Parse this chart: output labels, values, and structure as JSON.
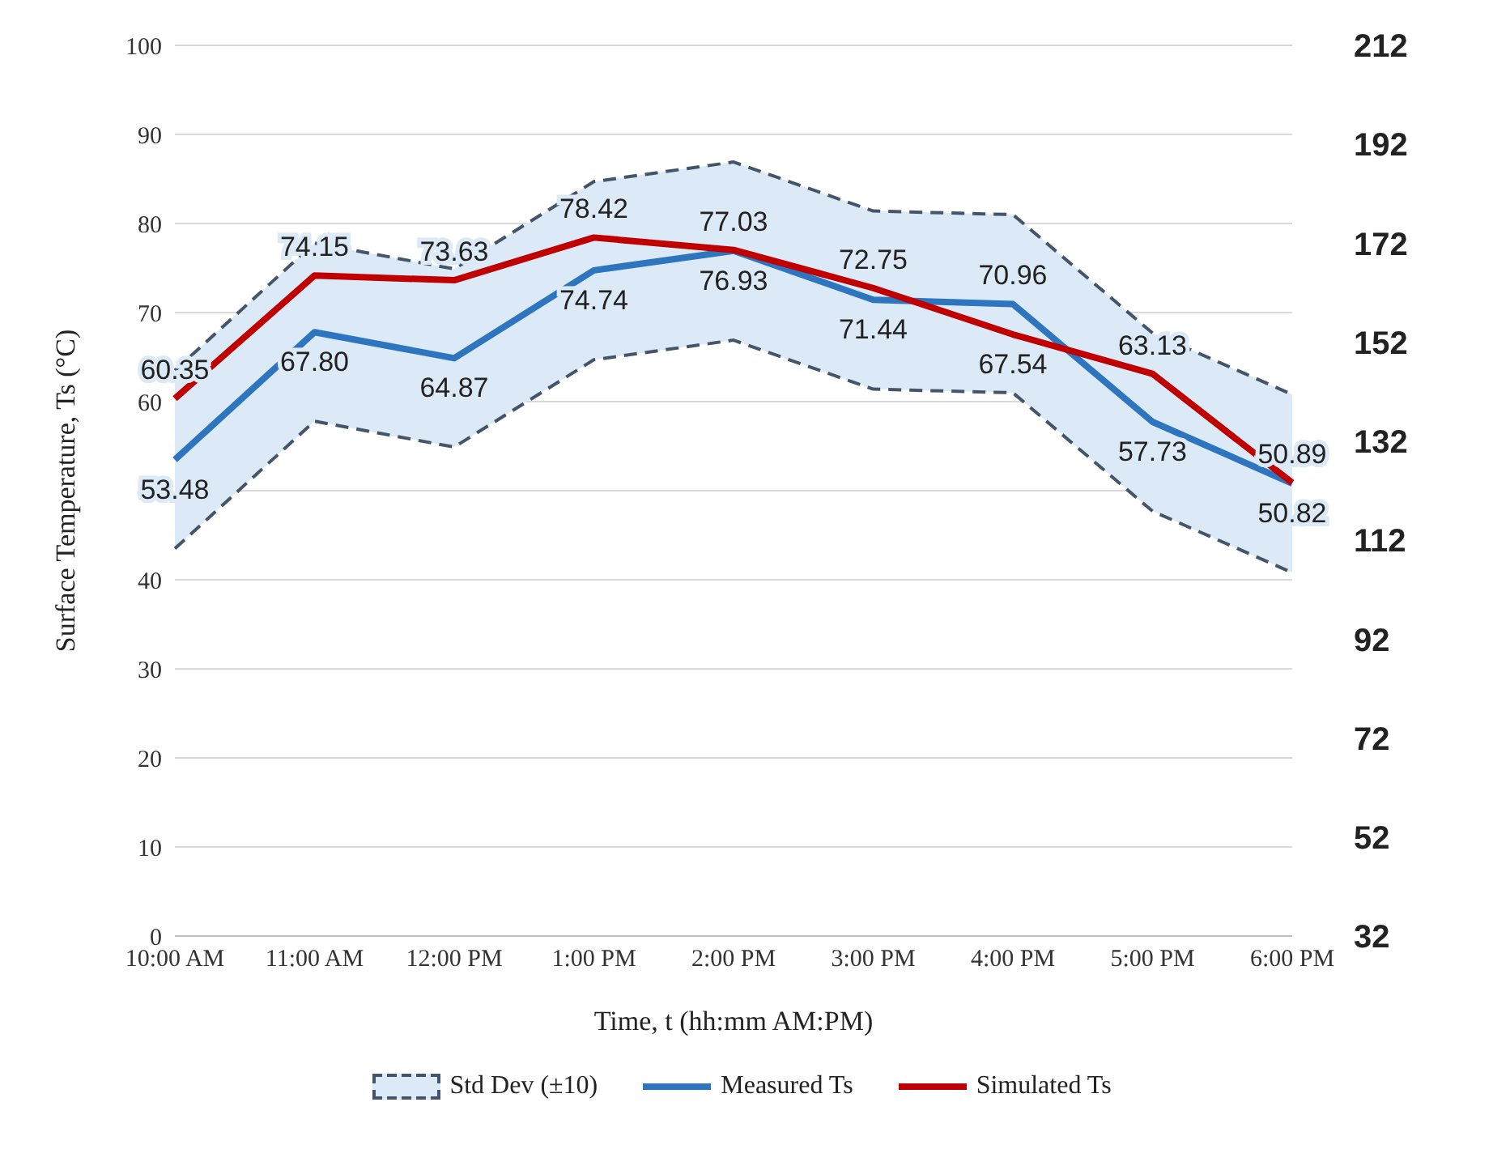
{
  "chart_data": {
    "type": "line",
    "xlabel": "Time, t (hh:mm AM:PM)",
    "ylabel": "Surface Temperature, Ts (°C)",
    "categories": [
      "10:00 AM",
      "11:00 AM",
      "12:00 PM",
      "1:00 PM",
      "2:00 PM",
      "3:00 PM",
      "4:00 PM",
      "5:00 PM",
      "6:00 PM"
    ],
    "series": [
      {
        "name": "Std Dev (±10)",
        "color": "#44546a",
        "line_style": "dashed",
        "values": [
          63.5,
          77.8,
          74.9,
          84.7,
          86.9,
          81.4,
          81.0,
          67.7,
          60.8
        ]
      },
      {
        "color": "#44546a",
        "line_style": "dashed",
        "values": [
          43.5,
          57.8,
          54.9,
          64.7,
          66.9,
          61.4,
          61.0,
          47.7,
          40.8
        ]
      },
      {
        "name": "Measured Ts",
        "color": "#2e75c0",
        "values": [
          53.48,
          67.8,
          64.87,
          74.74,
          76.93,
          71.44,
          70.96,
          57.73,
          50.82
        ],
        "value_labels": [
          "53.48",
          "67.80",
          "64.87",
          "74.74",
          "76.93",
          "71.44",
          "70.96",
          "57.73",
          "50.82"
        ],
        "lower": [
          43.5,
          57.8,
          54.9,
          64.7,
          66.9,
          61.4,
          61.0,
          47.7,
          40.8
        ],
        "upper": [
          63.5,
          77.8,
          74.9,
          84.7,
          86.9,
          81.4,
          81.0,
          67.7,
          60.8
        ]
      },
      {
        "name": "Simulated Ts",
        "color": "#c00000",
        "values": [
          60.35,
          74.15,
          73.63,
          78.42,
          77.03,
          72.75,
          67.54,
          63.13,
          50.89
        ],
        "value_labels": [
          "60.35",
          "74.15",
          "73.63",
          "78.42",
          "77.03",
          "72.75",
          "67.54",
          "63.13",
          "50.89"
        ]
      }
    ],
    "ylim": [
      0,
      100
    ],
    "yticks": [
      0,
      10,
      20,
      30,
      40,
      50,
      60,
      70,
      80,
      90,
      100
    ],
    "y2lim": [
      32,
      212
    ],
    "y2ticks": [
      32,
      52,
      72,
      92,
      112,
      132,
      152,
      172,
      192,
      212
    ],
    "grid": "y",
    "legend": "bottom",
    "marker": "none",
    "line_style": "solid"
  }
}
